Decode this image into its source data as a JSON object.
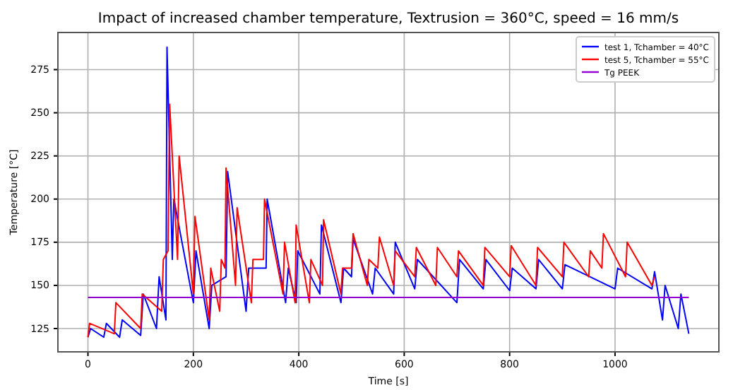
{
  "chart_data": {
    "type": "line",
    "title": "Impact of increased chamber temperature, Textrusion = 360°C, speed = 16 mm/s",
    "xlabel": "Time [s]",
    "ylabel": "Temperature [°C]",
    "xlim": [
      -57,
      1197
    ],
    "ylim": [
      111.5,
      296.5
    ],
    "xticks": [
      0,
      200,
      400,
      600,
      800,
      1000
    ],
    "yticks": [
      125,
      150,
      175,
      200,
      225,
      250,
      275
    ],
    "grid": true,
    "legend": "top right",
    "line_style": "solid",
    "marker": "none",
    "series": [
      {
        "name": "test 1, Tchamber = 40°C",
        "color": "#0000ff",
        "x": [
          0,
          5,
          30,
          35,
          60,
          65,
          100,
          105,
          130,
          135,
          148,
          150,
          160,
          163,
          200,
          205,
          230,
          235,
          262,
          265,
          300,
          305,
          338,
          340,
          375,
          380,
          395,
          398,
          440,
          443,
          480,
          485,
          500,
          503,
          540,
          545,
          580,
          583,
          620,
          625,
          700,
          705,
          750,
          755,
          800,
          805,
          850,
          855,
          900,
          905,
          1000,
          1005,
          1070,
          1075,
          1090,
          1095,
          1120,
          1125,
          1140
        ],
        "values": [
          120,
          125,
          120,
          128,
          120,
          130,
          121,
          145,
          125,
          155,
          130,
          288,
          165,
          200,
          140,
          170,
          125,
          150,
          155,
          216,
          135,
          160,
          160,
          200,
          140,
          160,
          140,
          170,
          145,
          185,
          140,
          160,
          155,
          177,
          145,
          160,
          145,
          175,
          148,
          165,
          140,
          165,
          148,
          165,
          147,
          160,
          148,
          165,
          148,
          162,
          148,
          160,
          148,
          158,
          130,
          150,
          125,
          145,
          122
        ]
      },
      {
        "name": "test 5, Tchamber = 55°C",
        "color": "#ff0000",
        "x": [
          0,
          3,
          50,
          53,
          100,
          103,
          140,
          143,
          152,
          155,
          170,
          173,
          200,
          203,
          230,
          233,
          250,
          253,
          260,
          262,
          280,
          283,
          310,
          313,
          333,
          335,
          370,
          373,
          393,
          395,
          420,
          423,
          445,
          447,
          480,
          483,
          500,
          503,
          530,
          533,
          550,
          553,
          580,
          583,
          620,
          623,
          660,
          663,
          700,
          703,
          750,
          753,
          800,
          803,
          850,
          853,
          900,
          903,
          950,
          953,
          975,
          978,
          1020,
          1023,
          1070,
          1075
        ],
        "values": [
          120,
          128,
          122,
          140,
          125,
          145,
          135,
          165,
          170,
          255,
          165,
          225,
          145,
          190,
          130,
          160,
          135,
          165,
          160,
          218,
          150,
          195,
          140,
          165,
          165,
          200,
          145,
          175,
          140,
          185,
          140,
          165,
          150,
          188,
          145,
          160,
          160,
          180,
          150,
          165,
          160,
          178,
          150,
          170,
          155,
          172,
          150,
          172,
          155,
          170,
          150,
          172,
          155,
          173,
          150,
          172,
          155,
          175,
          155,
          170,
          160,
          180,
          155,
          175,
          150,
          155
        ]
      },
      {
        "name": "Tg PEEK",
        "color": "#9400d3",
        "x": [
          0,
          1140
        ],
        "values": [
          143,
          143
        ]
      }
    ]
  }
}
